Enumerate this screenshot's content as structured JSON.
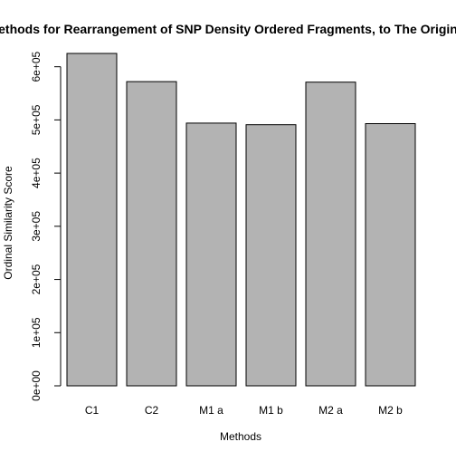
{
  "chart_data": {
    "type": "bar",
    "title": "Methods for Rearrangement of SNP Density Ordered Fragments, to The Original",
    "xlabel": "Methods",
    "ylabel": "Ordinal Similarity Score",
    "categories": [
      "C1",
      "C2",
      "M1 a",
      "M1 b",
      "M2 a",
      "M2 b"
    ],
    "values": [
      625000,
      572000,
      494000,
      491000,
      571000,
      493000
    ],
    "ylim": [
      0,
      625000
    ],
    "yticks": [
      0,
      100000,
      200000,
      300000,
      400000,
      500000,
      600000
    ],
    "ytick_labels": [
      "0e+00",
      "1e+05",
      "2e+05",
      "3e+05",
      "4e+05",
      "5e+05",
      "6e+05"
    ],
    "bar_color": "#b3b3b3",
    "bar_border_color": "#000000",
    "grid": false,
    "legend": "none"
  }
}
